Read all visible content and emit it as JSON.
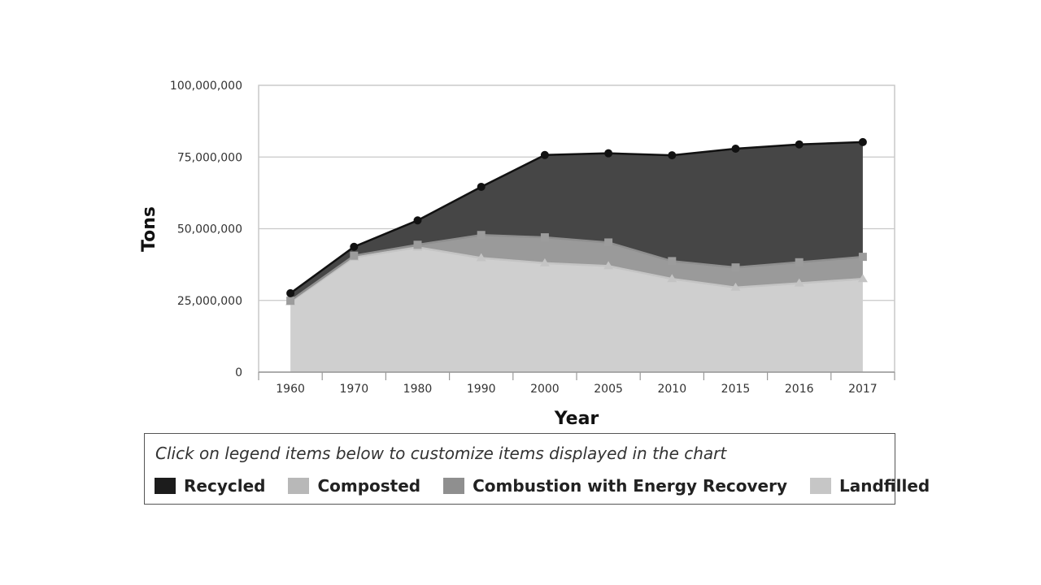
{
  "chart_data": {
    "type": "area",
    "stacked": true,
    "xlabel": "Year",
    "ylabel": "Tons",
    "ylim": [
      0,
      100000000
    ],
    "y_ticks": [
      0,
      25000000,
      50000000,
      75000000,
      100000000
    ],
    "y_tick_labels": [
      "0",
      "25,000,000",
      "50,000,000",
      "75,000,000",
      "100,000,000"
    ],
    "categories": [
      "1960",
      "1970",
      "1980",
      "1990",
      "2000",
      "2005",
      "2010",
      "2015",
      "2016",
      "2017"
    ],
    "grid": true,
    "legend_position": "bottom",
    "series": [
      {
        "name": "Landfilled",
        "color": "#cfcfcf",
        "values": [
          24500000,
          40000000,
          43500000,
          39800000,
          38000000,
          37000000,
          32500000,
          29500000,
          31000000,
          32500000
        ]
      },
      {
        "name": "Combustion with Energy Recovery",
        "color": "#9a9a9a",
        "values": [
          400000,
          600000,
          900000,
          8000000,
          9000000,
          8200000,
          6200000,
          7000000,
          7300000,
          7700000
        ]
      },
      {
        "name": "Composted",
        "color": "#b5b5b5",
        "values": [
          0,
          0,
          0,
          0,
          0,
          0,
          0,
          0,
          0,
          0
        ]
      },
      {
        "name": "Recycled",
        "color": "#464646",
        "values": [
          2600000,
          3100000,
          8500000,
          16800000,
          28700000,
          31100000,
          36900000,
          41400000,
          41100000,
          40000000
        ]
      }
    ]
  },
  "legend": {
    "note": "Click on legend items below to customize items displayed in the chart",
    "items": [
      {
        "label": "Recycled",
        "color": "#1c1c1c"
      },
      {
        "label": "Composted",
        "color": "#b8b8b8"
      },
      {
        "label": "Combustion with Energy Recovery",
        "color": "#8f8f8f"
      },
      {
        "label": "Landfilled",
        "color": "#c6c6c6"
      }
    ]
  }
}
